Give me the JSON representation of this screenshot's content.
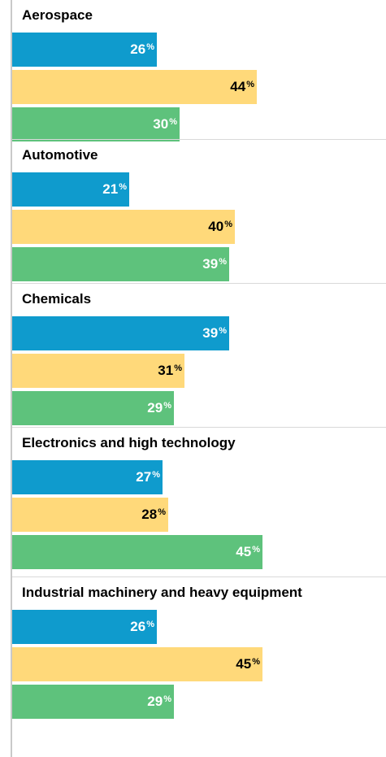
{
  "chart_data": {
    "type": "bar",
    "orientation": "horizontal",
    "unit": "%",
    "colors": [
      "#0f9bcd",
      "#ffd97a",
      "#5ec27c"
    ],
    "label_colors": [
      "#ffffff",
      "#000000",
      "#ffffff"
    ],
    "xlim": [
      0,
      100
    ],
    "grid": false,
    "groups": [
      {
        "name": "Aerospace",
        "values": [
          26,
          44,
          30
        ]
      },
      {
        "name": "Automotive",
        "values": [
          21,
          40,
          39
        ]
      },
      {
        "name": "Chemicals",
        "values": [
          39,
          31,
          29
        ]
      },
      {
        "name": "Electronics and high technology",
        "values": [
          27,
          28,
          45
        ]
      },
      {
        "name": "Industrial machinery and heavy equipment",
        "values": [
          26,
          45,
          29
        ]
      }
    ]
  }
}
